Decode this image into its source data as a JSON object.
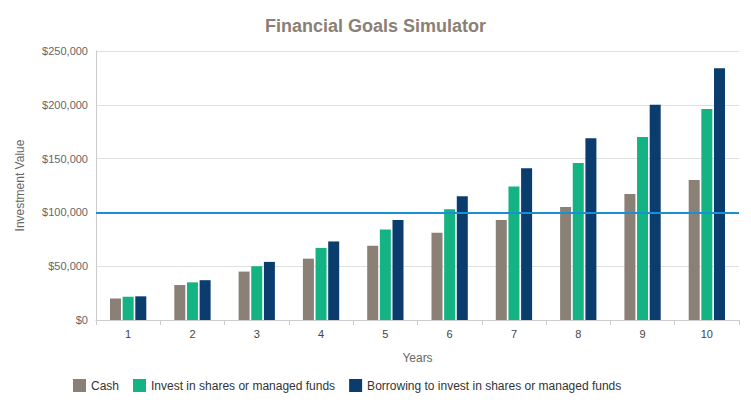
{
  "chart_data": {
    "type": "bar",
    "title": "Financial Goals Simulator",
    "x_label": "Years",
    "y_label": "Investment Value",
    "categories": [
      "1",
      "2",
      "3",
      "4",
      "5",
      "6",
      "7",
      "8",
      "9",
      "10"
    ],
    "series": [
      {
        "name": "Cash",
        "color": "#8a8075",
        "values": [
          20000,
          32500,
          45000,
          57000,
          69000,
          81000,
          93000,
          105000,
          117000,
          130000
        ]
      },
      {
        "name": "Invest in shares or managed funds",
        "color": "#13b383",
        "values": [
          21500,
          35000,
          50000,
          67000,
          84000,
          103000,
          124000,
          146000,
          170000,
          196000
        ]
      },
      {
        "name": "Borrowing to invest in shares or managed funds",
        "color": "#0b3c6e",
        "values": [
          22000,
          37000,
          54000,
          73000,
          93000,
          115000,
          141000,
          169000,
          200000,
          234000
        ]
      }
    ],
    "target": {
      "value": 100000,
      "color": "#1a8fd6"
    },
    "ylim": [
      0,
      250000
    ],
    "yticks": [
      {
        "value": 0,
        "label": "$0"
      },
      {
        "value": 50000,
        "label": "$50,000"
      },
      {
        "value": 100000,
        "label": "$100,000"
      },
      {
        "value": 150000,
        "label": "$150,000"
      },
      {
        "value": 200000,
        "label": "$200,000"
      },
      {
        "value": 250000,
        "label": "$250,000"
      }
    ],
    "grid": true,
    "legend": "bottom"
  }
}
